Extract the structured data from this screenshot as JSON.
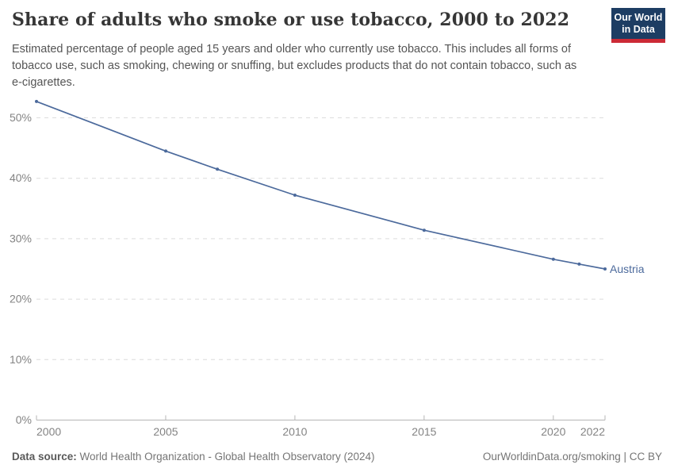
{
  "header": {
    "title": "Share of adults who smoke or use tobacco, 2000 to 2022",
    "subtitle": "Estimated percentage of people aged 15 years and older who currently use tobacco. This includes all forms of tobacco use, such as smoking, chewing or snuffing, but excludes products that do not contain tobacco, such as e-cigarettes.",
    "logo": {
      "line1": "Our World",
      "line2": "in Data",
      "bg_color": "#1d3d63",
      "stripe_color": "#cc2a36"
    }
  },
  "chart_data": {
    "type": "line",
    "title": "Share of adults who smoke or use tobacco, 2000 to 2022",
    "series": [
      {
        "name": "Austria",
        "color": "#4c6a9c",
        "x": [
          2000,
          2005,
          2007,
          2010,
          2015,
          2020,
          2021,
          2022
        ],
        "values": [
          52.7,
          44.5,
          41.5,
          37.2,
          31.4,
          26.6,
          25.8,
          25.0
        ]
      }
    ],
    "xlim": [
      2000,
      2022
    ],
    "ylim": [
      0,
      53
    ],
    "xticks": [
      2000,
      2005,
      2010,
      2015,
      2020,
      2022
    ],
    "yticks": [
      0,
      10,
      20,
      30,
      40,
      50
    ],
    "ytick_suffix": "%",
    "grid": "horizontal-dashed",
    "legend": "end-of-line-label"
  },
  "footer": {
    "source_label": "Data source:",
    "source_text": "World Health Organization - Global Health Observatory (2024)",
    "url_text": "OurWorldinData.org/smoking | CC BY"
  }
}
